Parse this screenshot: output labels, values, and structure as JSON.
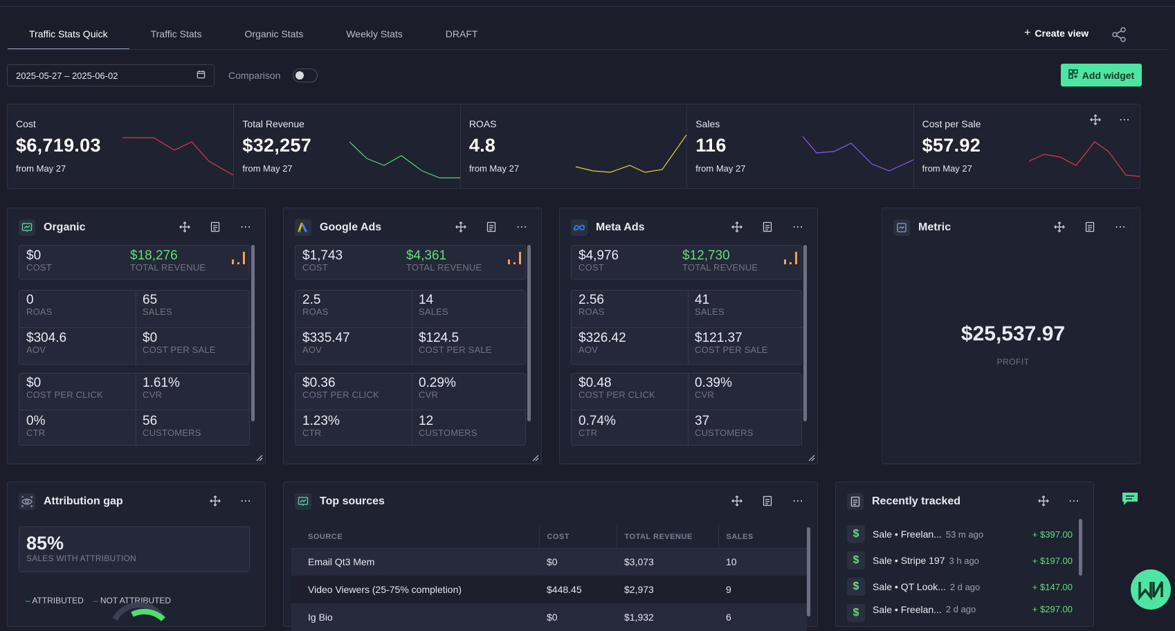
{
  "tabs": [
    "Traffic Stats Quick",
    "Traffic Stats",
    "Organic Stats",
    "Weekly Stats",
    "DRAFT"
  ],
  "create_view_label": "Create view",
  "date_range": "2025-05-27 – 2025-06-02",
  "comparison_label": "Comparison",
  "comparison_enabled": false,
  "add_widget_label": "Add widget",
  "kpis": [
    {
      "label": "Cost",
      "value": "$6,719.03",
      "sub": "from May 27",
      "color": "#e0384f"
    },
    {
      "label": "Total Revenue",
      "value": "$32,257",
      "sub": "from May 27",
      "color": "#4ee06a"
    },
    {
      "label": "ROAS",
      "value": "4.8",
      "sub": "from May 27",
      "color": "#e8d23a"
    },
    {
      "label": "Sales",
      "value": "116",
      "sub": "from May 27",
      "color": "#8b5cf6"
    },
    {
      "label": "Cost per Sale",
      "value": "$57.92",
      "sub": "from May 27",
      "color": "#e0384f"
    }
  ],
  "sources": [
    {
      "title": "Organic",
      "cost": "$0",
      "total_revenue": "$18,276",
      "roas": "0",
      "sales": "65",
      "aov": "$304.6",
      "cost_per_sale": "$0",
      "cpc": "$0",
      "cvr": "1.61%",
      "ctr": "0%",
      "customers": "56"
    },
    {
      "title": "Google Ads",
      "cost": "$1,743",
      "total_revenue": "$4,361",
      "roas": "2.5",
      "sales": "14",
      "aov": "$335.47",
      "cost_per_sale": "$124.5",
      "cpc": "$0.36",
      "cvr": "0.29%",
      "ctr": "1.23%",
      "customers": "12"
    },
    {
      "title": "Meta Ads",
      "cost": "$4,976",
      "total_revenue": "$12,730",
      "roas": "2.56",
      "sales": "41",
      "aov": "$326.42",
      "cost_per_sale": "$121.37",
      "cpc": "$0.48",
      "cvr": "0.39%",
      "ctr": "0.74%",
      "customers": "37"
    }
  ],
  "labels": {
    "cost": "COST",
    "total_revenue": "TOTAL REVENUE",
    "roas": "ROAS",
    "sales": "SALES",
    "aov": "AOV",
    "cost_per_sale": "COST PER SALE",
    "cpc": "COST PER CLICK",
    "cvr": "CVR",
    "ctr": "CTR",
    "customers": "CUSTOMERS"
  },
  "metric": {
    "title": "Metric",
    "value": "$25,537.97",
    "label": "PROFIT"
  },
  "attribution": {
    "title": "Attribution gap",
    "value": "85%",
    "label": "SALES WITH ATTRIBUTION",
    "legend_attributed": "ATTRIBUTED",
    "legend_not_attributed": "NOT ATTRIBUTED"
  },
  "top_sources": {
    "title": "Top sources",
    "columns": [
      "SOURCE",
      "COST",
      "TOTAL REVENUE",
      "SALES"
    ],
    "rows": [
      [
        "Email Qt3 Mem",
        "$0",
        "$3,073",
        "10"
      ],
      [
        "Video Viewers (25-75% completion)",
        "$448.45",
        "$2,973",
        "9"
      ],
      [
        "Ig Bio",
        "$0",
        "$1,932",
        "6"
      ]
    ]
  },
  "recent": {
    "title": "Recently tracked",
    "items": [
      {
        "title": "Sale • Freelan...",
        "time": "53 m ago",
        "amount": "+ $397.00"
      },
      {
        "title": "Sale • Stripe 197",
        "time": "3 h ago",
        "amount": "+ $197.00"
      },
      {
        "title": "Sale • QT Look...",
        "time": "2 d ago",
        "amount": "+ $147.00"
      },
      {
        "title": "Sale • Freelan...",
        "time": "2 d ago",
        "amount": "+ $297.00"
      }
    ]
  }
}
